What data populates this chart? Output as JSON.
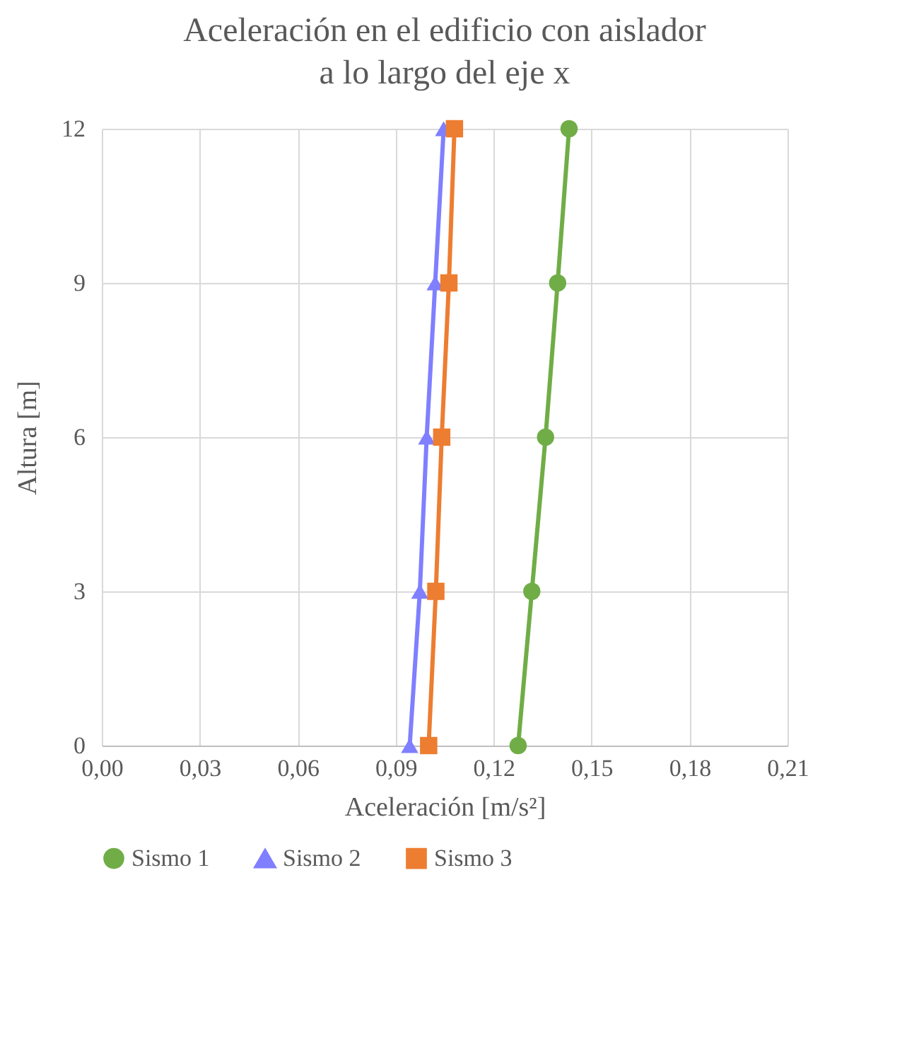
{
  "chart_data": {
    "type": "line",
    "title": "Aceleración en el edificio con aislador\na lo largo del eje x",
    "xlabel": "Aceleración [m/s²]",
    "ylabel": "Altura [m]",
    "series": [
      {
        "name": "Sismo 1",
        "color": "#70ad47",
        "marker": "circle",
        "x": [
          0.1275,
          0.1317,
          0.1359,
          0.1396,
          0.1431
        ],
        "values": [
          0,
          3,
          6,
          9,
          12
        ]
      },
      {
        "name": "Sismo 2",
        "color": "#7f7fff",
        "marker": "triangle",
        "x": [
          0.0943,
          0.0974,
          0.0995,
          0.1021,
          0.1047
        ],
        "values": [
          0,
          3,
          6,
          9,
          12
        ]
      },
      {
        "name": "Sismo 3",
        "color": "#ed7d31",
        "marker": "square",
        "x": [
          0.1001,
          0.1023,
          0.1041,
          0.1063,
          0.108
        ],
        "values": [
          0,
          3,
          6,
          9,
          12
        ]
      }
    ],
    "xlim": [
      0,
      0.21
    ],
    "ylim": [
      0,
      12
    ],
    "xticks": [
      {
        "value": 0,
        "label": "0,00"
      },
      {
        "value": 0.03,
        "label": "0,03"
      },
      {
        "value": 0.06,
        "label": "0,06"
      },
      {
        "value": 0.09,
        "label": "0,09"
      },
      {
        "value": 0.12,
        "label": "0,12"
      },
      {
        "value": 0.15,
        "label": "0,15"
      },
      {
        "value": 0.18,
        "label": "0,18"
      },
      {
        "value": 0.21,
        "label": "0,21"
      }
    ],
    "yticks": [
      0,
      3,
      6,
      9,
      12
    ],
    "grid": true,
    "legend": "bottom",
    "line_style": "solid"
  }
}
